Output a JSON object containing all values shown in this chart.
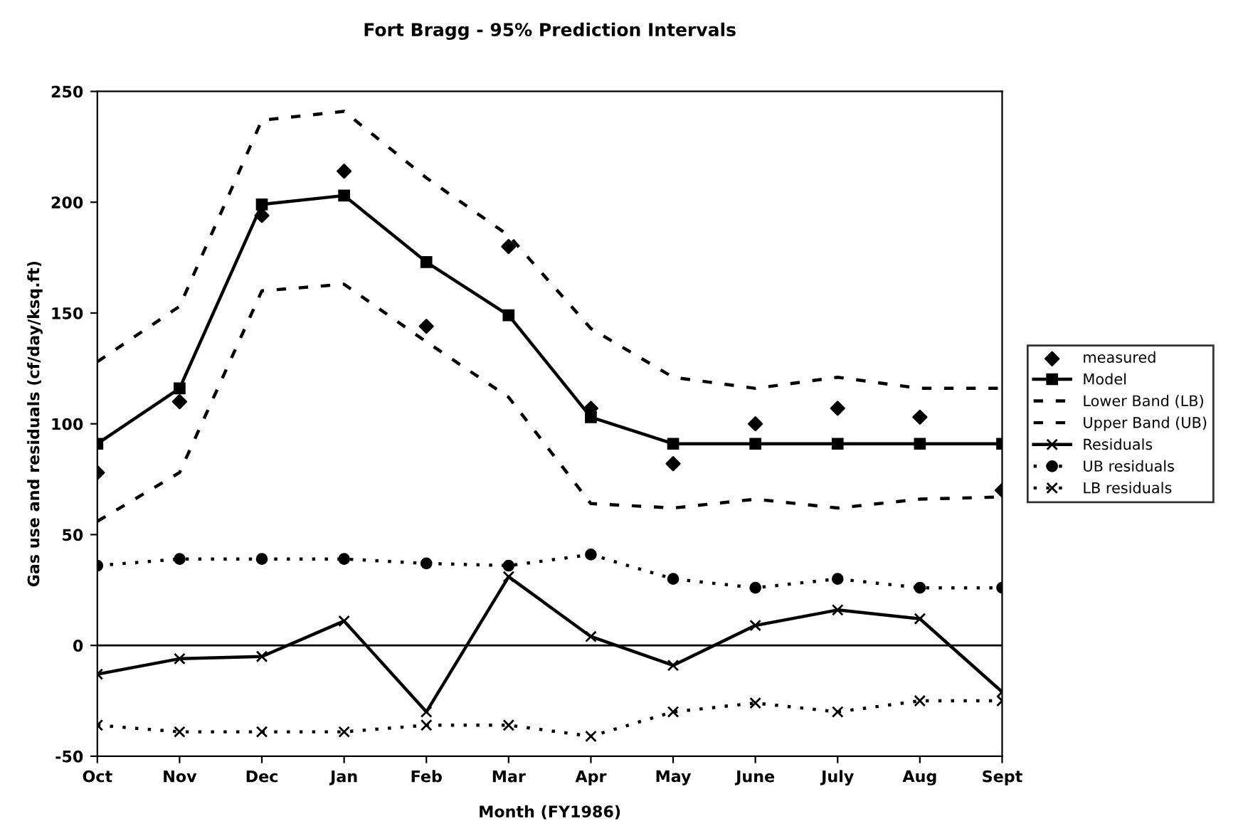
{
  "chart_data": {
    "type": "line",
    "title": "Fort Bragg - 95% Prediction Intervals",
    "xlabel": "Month (FY1986)",
    "ylabel": "Gas use and residuals (cf/day/ksq.ft)",
    "categories": [
      "Oct",
      "Nov",
      "Dec",
      "Jan",
      "Feb",
      "Mar",
      "Apr",
      "May",
      "June",
      "July",
      "Aug",
      "Sept"
    ],
    "ylim": [
      -50,
      250
    ],
    "yticks": [
      -50,
      0,
      50,
      100,
      150,
      200,
      250
    ],
    "grid": false,
    "legend": "right",
    "ref_lines": [
      {
        "axis": "y",
        "value": 0,
        "color": "#000000",
        "line_style": "solid"
      }
    ],
    "series": [
      {
        "name": "measured",
        "type": "scatter",
        "color": "#000000",
        "marker": "diamond",
        "values": [
          78,
          110,
          194,
          214,
          144,
          180,
          107,
          82,
          100,
          107,
          103,
          70
        ]
      },
      {
        "name": "Model",
        "color": "#000000",
        "marker": "square",
        "line_style": "solid",
        "values": [
          91,
          116,
          199,
          203,
          173,
          149,
          103,
          91,
          91,
          91,
          91,
          91
        ]
      },
      {
        "name": "Lower Band (LB)",
        "color": "#000000",
        "marker": "none",
        "line_style": "dashed",
        "values": [
          56,
          78,
          160,
          163,
          137,
          112,
          64,
          62,
          66,
          62,
          66,
          67
        ]
      },
      {
        "name": "Upper Band (UB)",
        "color": "#000000",
        "marker": "none",
        "line_style": "dashed",
        "values": [
          128,
          153,
          237,
          241,
          211,
          185,
          143,
          121,
          116,
          121,
          116,
          116
        ]
      },
      {
        "name": "Residuals",
        "color": "#000000",
        "marker": "cross",
        "line_style": "solid",
        "values": [
          -13,
          -6,
          -5,
          11,
          -30,
          31,
          4,
          -9,
          9,
          16,
          12,
          -21
        ]
      },
      {
        "name": "UB residuals",
        "color": "#000000",
        "marker": "circle",
        "line_style": "dotted",
        "values": [
          36,
          39,
          39,
          39,
          37,
          36,
          41,
          30,
          26,
          30,
          26,
          26
        ]
      },
      {
        "name": "LB residuals",
        "color": "#000000",
        "marker": "cross",
        "line_style": "dotted",
        "values": [
          -36,
          -39,
          -39,
          -39,
          -36,
          -36,
          -41,
          -30,
          -26,
          -30,
          -25,
          -25
        ]
      }
    ]
  }
}
